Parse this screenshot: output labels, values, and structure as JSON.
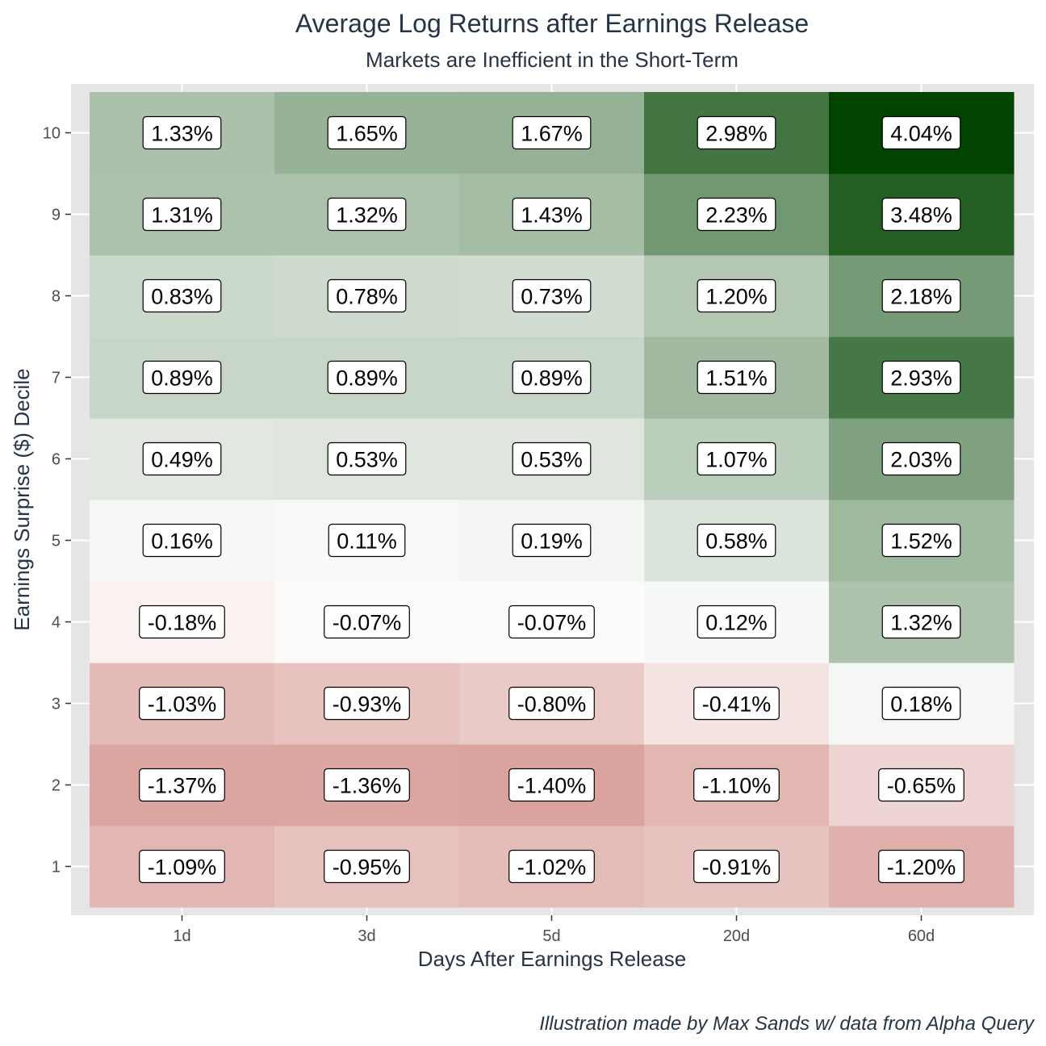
{
  "chart_data": {
    "type": "heatmap",
    "title": "Average Log Returns after Earnings Release",
    "subtitle": "Markets are Inefficient in the Short-Term",
    "xlabel": "Days After Earnings Release",
    "ylabel": "Earnings Surprise ($) Decile",
    "caption": "Illustration made by Max Sands w/ data from Alpha Query",
    "x_categories": [
      "1d",
      "3d",
      "5d",
      "20d",
      "60d"
    ],
    "y_categories": [
      "1",
      "2",
      "3",
      "4",
      "5",
      "6",
      "7",
      "8",
      "9",
      "10"
    ],
    "value_unit": "%",
    "values": [
      [
        -1.09,
        -0.95,
        -1.02,
        -0.91,
        -1.2
      ],
      [
        -1.37,
        -1.36,
        -1.4,
        -1.1,
        -0.65
      ],
      [
        -1.03,
        -0.93,
        -0.8,
        -0.41,
        0.18
      ],
      [
        -0.18,
        -0.07,
        -0.07,
        0.12,
        1.32
      ],
      [
        0.16,
        0.11,
        0.19,
        0.58,
        1.52
      ],
      [
        0.49,
        0.53,
        0.53,
        1.07,
        2.03
      ],
      [
        0.89,
        0.89,
        0.89,
        1.51,
        2.93
      ],
      [
        0.83,
        0.78,
        0.73,
        1.2,
        2.18
      ],
      [
        1.31,
        1.32,
        1.43,
        2.23,
        3.48
      ],
      [
        1.33,
        1.65,
        1.67,
        2.98,
        4.04
      ]
    ],
    "color_scale": {
      "low": "#b03a2e",
      "mid": "#ffffff",
      "high": "#004400",
      "min": -3.0,
      "max": 4.04
    },
    "panel_background": "#e5e5e5",
    "grid": true
  }
}
